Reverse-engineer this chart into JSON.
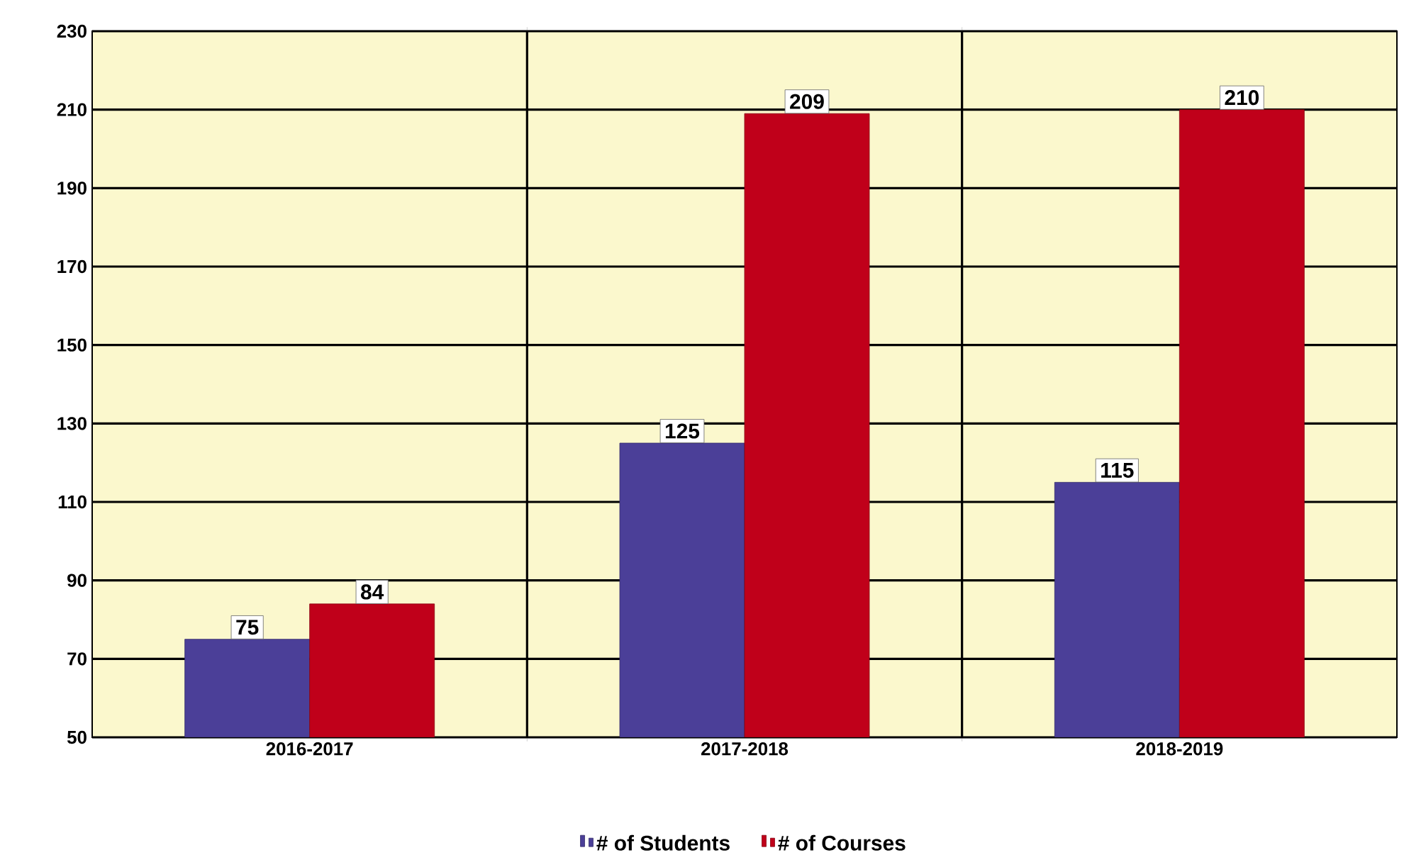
{
  "chart_data": {
    "type": "bar",
    "categories": [
      "2016-2017",
      "2017-2018",
      "2018-2019"
    ],
    "series": [
      {
        "name": "# of Students",
        "color": "#4b3f98",
        "values": [
          75,
          125,
          115
        ]
      },
      {
        "name": "# of Courses",
        "color": "#c0001a",
        "values": [
          84,
          209,
          210
        ]
      }
    ],
    "ylim": [
      50,
      230
    ],
    "yticks": [
      50,
      70,
      90,
      110,
      130,
      150,
      170,
      190,
      210,
      230
    ],
    "grid": true,
    "legend": "bottom",
    "data_labels": true
  }
}
